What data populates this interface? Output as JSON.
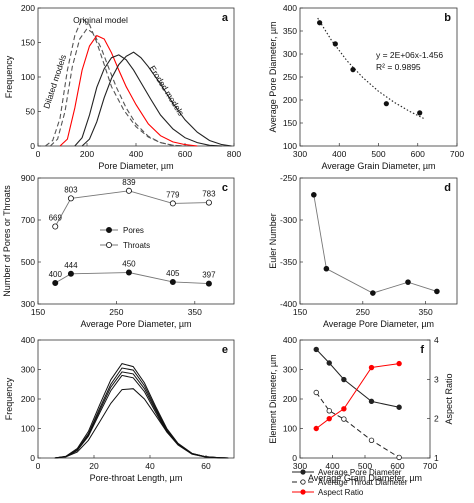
{
  "figure": {
    "chart_data": [
      {
        "id": "a",
        "panel_label": "a",
        "type": "line",
        "xlabel": "Pore Diameter, µm",
        "ylabel": "Frequency",
        "xlim": [
          0,
          800
        ],
        "ylim": [
          0,
          200
        ],
        "xticks": [
          0,
          200,
          400,
          600,
          800
        ],
        "yticks": [
          0,
          50,
          100,
          150,
          200
        ],
        "annotations": [
          {
            "text": "Original model",
            "x": 255,
            "y": 178,
            "rotate": 0
          },
          {
            "text": "Dilated models",
            "x": 80,
            "y": 92,
            "rotate": -72
          },
          {
            "text": "Eroded models",
            "x": 515,
            "y": 78,
            "rotate": 58
          }
        ],
        "series": [
          {
            "color": "#555555",
            "dash": "5,3",
            "x": [
              30,
              60,
              90,
              120,
              150,
              180,
              210,
              240,
              270,
              300,
              350,
              400,
              450,
              500,
              550,
              600
            ],
            "y": [
              0,
              8,
              40,
              110,
              160,
              185,
              176,
              150,
              118,
              86,
              52,
              28,
              13,
              5,
              1,
              0
            ]
          },
          {
            "color": "#555555",
            "dash": "5,3",
            "x": [
              50,
              80,
              110,
              140,
              170,
              200,
              230,
              260,
              290,
              320,
              360,
              400,
              450,
              500,
              550,
              600
            ],
            "y": [
              0,
              10,
              50,
              115,
              155,
              170,
              162,
              140,
              112,
              85,
              55,
              32,
              14,
              5,
              1,
              0
            ]
          },
          {
            "color": "#ff0000",
            "dash": "",
            "x": [
              90,
              120,
              150,
              180,
              210,
              240,
              270,
              300,
              330,
              360,
              400,
              450,
              500,
              550,
              600,
              650
            ],
            "y": [
              0,
              10,
              55,
              110,
              145,
              160,
              155,
              135,
              110,
              86,
              60,
              32,
              15,
              6,
              2,
              0
            ]
          },
          {
            "color": "#222222",
            "dash": "",
            "x": [
              150,
              180,
              210,
              240,
              270,
              300,
              330,
              360,
              390,
              420,
              460,
              500,
              550,
              600,
              650,
              700,
              750
            ],
            "y": [
              0,
              12,
              45,
              85,
              112,
              128,
              132,
              125,
              110,
              92,
              68,
              45,
              25,
              12,
              5,
              1,
              0
            ]
          },
          {
            "color": "#222222",
            "dash": "",
            "x": [
              180,
              210,
              240,
              270,
              300,
              330,
              360,
              390,
              420,
              450,
              500,
              550,
              600,
              650,
              700,
              750,
              790
            ],
            "y": [
              0,
              10,
              35,
              70,
              98,
              118,
              130,
              136,
              128,
              115,
              90,
              62,
              38,
              20,
              8,
              2,
              0
            ]
          }
        ]
      },
      {
        "id": "b",
        "panel_label": "b",
        "type": "scatter",
        "xlabel": "Average Grain Diameter, µm",
        "ylabel": "Average Pore Diameter, µm",
        "xlim": [
          300,
          700
        ],
        "ylim": [
          100,
          400
        ],
        "xticks": [
          300,
          400,
          500,
          600,
          700
        ],
        "yticks": [
          100,
          150,
          200,
          250,
          300,
          350,
          400
        ],
        "equation": "y = 2E+06x-1.456",
        "r_squared": "R² = 0.9895",
        "points": {
          "x": [
            350,
            390,
            435,
            520,
            605
          ],
          "y": [
            368,
            322,
            266,
            192,
            172
          ]
        },
        "trendline": {
          "x": [
            345,
            380,
            420,
            460,
            500,
            540,
            580,
            615
          ],
          "y": [
            378,
            330,
            285,
            249,
            219,
            195,
            175,
            160
          ]
        }
      },
      {
        "id": "c",
        "panel_label": "c",
        "type": "line",
        "xlabel": "Average Pore Diameter, µm",
        "ylabel": "Number of Pores or Throats",
        "xlim": [
          150,
          400
        ],
        "ylim": [
          300,
          900
        ],
        "xticks": [
          150,
          250,
          350
        ],
        "yticks": [
          300,
          500,
          700,
          900
        ],
        "legend": [
          "Pores",
          "Throats"
        ],
        "series": [
          {
            "name": "Pores",
            "marker": "filled",
            "x": [
              172,
              192,
              266,
              322,
              368
            ],
            "y": [
              400,
              444,
              450,
              405,
              397
            ],
            "labels": [
              "400",
              "444",
              "450",
              "405",
              "397"
            ]
          },
          {
            "name": "Throats",
            "marker": "open",
            "x": [
              172,
              192,
              266,
              322,
              368
            ],
            "y": [
              669,
              803,
              839,
              779,
              783
            ],
            "labels": [
              "669",
              "803",
              "839",
              "779",
              "783"
            ]
          }
        ]
      },
      {
        "id": "d",
        "panel_label": "d",
        "type": "line",
        "xlabel": "Average Pore Diameter, µm",
        "ylabel": "Euler Number",
        "xlim": [
          150,
          400
        ],
        "ylim": [
          -400,
          -250
        ],
        "xticks": [
          150,
          250,
          350
        ],
        "yticks": [
          -400,
          -350,
          -300,
          -250
        ],
        "series": [
          {
            "x": [
              172,
              192,
              266,
              322,
              368
            ],
            "y": [
              -270,
              -358,
              -387,
              -374,
              -385
            ]
          }
        ]
      },
      {
        "id": "e",
        "panel_label": "e",
        "type": "line",
        "xlabel": "Pore-throat Length, µm",
        "ylabel": "Frequency",
        "xlim": [
          0,
          70
        ],
        "ylim": [
          0,
          400
        ],
        "xticks": [
          0,
          20,
          40,
          60
        ],
        "yticks": [
          0,
          100,
          200,
          300,
          400
        ],
        "series": [
          {
            "x": [
              6,
              10,
              14,
              18,
              22,
              26,
              30,
              34,
              38,
              42,
              46,
              50,
              55,
              60,
              65,
              68
            ],
            "y": [
              0,
              6,
              32,
              90,
              180,
              265,
              320,
              310,
              255,
              175,
              100,
              50,
              16,
              4,
              1,
              0
            ]
          },
          {
            "x": [
              6,
              10,
              14,
              18,
              22,
              26,
              30,
              34,
              38,
              42,
              46,
              50,
              55,
              60,
              65,
              68
            ],
            "y": [
              0,
              5,
              28,
              82,
              168,
              250,
              305,
              298,
              245,
              168,
              96,
              48,
              15,
              4,
              1,
              0
            ]
          },
          {
            "x": [
              6,
              10,
              14,
              18,
              22,
              26,
              30,
              34,
              38,
              42,
              46,
              50,
              55,
              60,
              65,
              68
            ],
            "y": [
              0,
              5,
              26,
              78,
              160,
              240,
              292,
              285,
              235,
              162,
              92,
              46,
              14,
              3,
              1,
              0
            ]
          },
          {
            "x": [
              6,
              10,
              14,
              18,
              22,
              26,
              30,
              34,
              38,
              42,
              46,
              50,
              55,
              60,
              65,
              68
            ],
            "y": [
              0,
              4,
              25,
              74,
              152,
              228,
              280,
              272,
              225,
              155,
              88,
              44,
              13,
              3,
              1,
              0
            ]
          },
          {
            "x": [
              6,
              10,
              14,
              18,
              22,
              26,
              30,
              34,
              38,
              42,
              46,
              50,
              55,
              60,
              65,
              68
            ],
            "y": [
              0,
              4,
              20,
              60,
              122,
              185,
              232,
              235,
              200,
              145,
              88,
              46,
              15,
              4,
              1,
              0
            ]
          }
        ]
      },
      {
        "id": "f",
        "panel_label": "f",
        "type": "line",
        "xlabel": "Average Grain Diameter, µm",
        "ylabel": "Element Diameter, µm",
        "y2label": "Aspect Ratio",
        "xlim": [
          300,
          700
        ],
        "ylim": [
          0,
          400
        ],
        "y2lim": [
          1,
          4
        ],
        "xticks": [
          300,
          400,
          500,
          600,
          700
        ],
        "yticks": [
          0,
          100,
          200,
          300,
          400
        ],
        "y2ticks": [
          1,
          2,
          3,
          4
        ],
        "legend_position": "bottom",
        "series": [
          {
            "name": "Average Pore Diameter",
            "color": "#222222",
            "dash": "",
            "marker": "filled",
            "axis": "left",
            "x": [
              350,
              390,
              435,
              520,
              605
            ],
            "y": [
              368,
              322,
              266,
              192,
              172
            ]
          },
          {
            "name": "Average Throat Diameter",
            "color": "#222222",
            "dash": "5,3",
            "marker": "open",
            "axis": "left",
            "x": [
              350,
              390,
              435,
              520,
              605
            ],
            "y": [
              222,
              160,
              132,
              60,
              2
            ]
          },
          {
            "name": "Aspect Ratio",
            "color": "#ff0000",
            "dash": "",
            "marker": "filled",
            "axis": "right",
            "x": [
              350,
              390,
              435,
              520,
              605
            ],
            "y": [
              1.75,
              2.0,
              2.25,
              3.3,
              3.4
            ]
          }
        ]
      }
    ]
  }
}
